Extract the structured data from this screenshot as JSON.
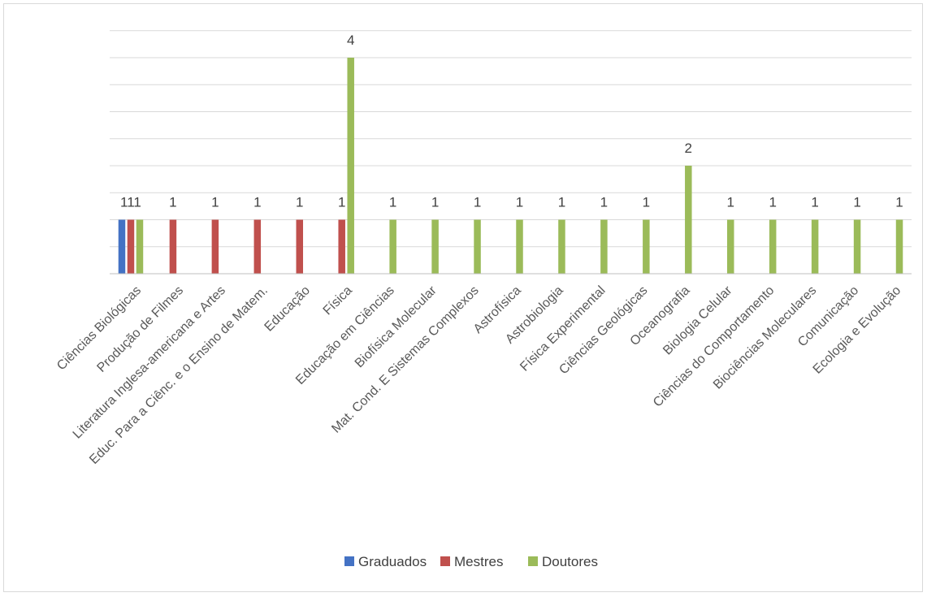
{
  "chart_data": {
    "type": "bar",
    "title": "",
    "xlabel": "",
    "ylabel": "",
    "ylim": [
      0,
      4.5
    ],
    "grid": true,
    "legend_position": "bottom",
    "categories": [
      "Ciências Biológicas",
      "Produção de Filmes",
      "Literatura Inglesa-americana e Artes",
      "Educ. Para a Ciênc. e o Ensino de Matem.",
      "Educação",
      "Física",
      "Educação em Ciências",
      "Biofísica Molecular",
      "Mat. Cond. E Sistemas Complexos",
      "Astrofísica",
      "Astrobiologia",
      "Física Experimental",
      "Ciências Geológicas",
      "Oceanografia",
      "Biologia Celular",
      "Ciências do Comportamento",
      "Biociências Moleculares",
      "Comunicação",
      "Ecologia e Evolução"
    ],
    "series": [
      {
        "name": "Graduados",
        "color": "#4472c4",
        "values": [
          1,
          null,
          null,
          null,
          null,
          null,
          null,
          null,
          null,
          null,
          null,
          null,
          null,
          null,
          null,
          null,
          null,
          null,
          null
        ]
      },
      {
        "name": "Mestres",
        "color": "#c0504d",
        "values": [
          1,
          1,
          1,
          1,
          1,
          1,
          null,
          null,
          null,
          null,
          null,
          null,
          null,
          null,
          null,
          null,
          null,
          null,
          null
        ]
      },
      {
        "name": "Doutores",
        "color": "#9bbb59",
        "values": [
          1,
          null,
          null,
          null,
          null,
          4,
          1,
          1,
          1,
          1,
          1,
          1,
          1,
          2,
          1,
          1,
          1,
          1,
          1
        ]
      }
    ]
  }
}
